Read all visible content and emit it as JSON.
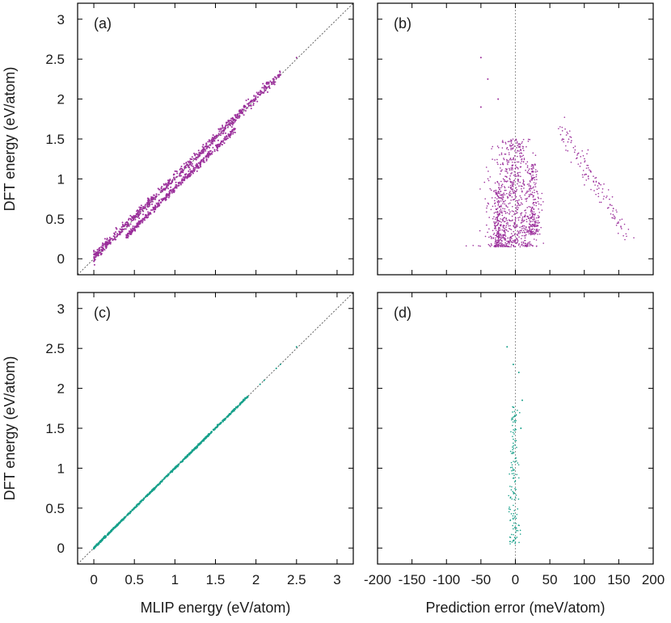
{
  "colors": {
    "magenta": "#9b2f9b",
    "teal": "#16a08a",
    "frame": "#000000",
    "refline": "#555555"
  },
  "ticks": {
    "energy": [
      "0",
      "0.5",
      "1",
      "1.5",
      "2",
      "2.5",
      "3"
    ],
    "error": [
      "-200",
      "-150",
      "-100",
      "-50",
      "0",
      "50",
      "100",
      "150",
      "200"
    ]
  },
  "chart_data": [
    {
      "panel": "(a)",
      "type": "scatter",
      "xlabel": "",
      "ylabel": "DFT energy (eV/atom)",
      "xlim": [
        -0.2,
        3.2
      ],
      "ylim": [
        -0.2,
        3.2
      ],
      "grid": false,
      "color": "magenta",
      "reference_line": "y = x, dotted",
      "bands": [
        {
          "x_start": 0.0,
          "x_end": 2.3,
          "y_offset": 0.02,
          "spread": 0.03
        },
        {
          "x_start": 0.4,
          "x_end": 1.75,
          "y_offset": -0.12,
          "spread": 0.02
        }
      ],
      "extra_points": [
        [
          2.05,
          2.05
        ],
        [
          2.3,
          2.3
        ],
        [
          2.5,
          2.52
        ]
      ]
    },
    {
      "panel": "(b)",
      "type": "scatter",
      "xlabel": "",
      "ylabel": "",
      "xlim": [
        -200,
        200
      ],
      "ylim": [
        -0.2,
        3.2
      ],
      "grid": false,
      "color": "magenta",
      "reference_line": "x = 0, dotted",
      "clusters": [
        {
          "x_center": -5,
          "x_spread": 20,
          "y_min": 0.15,
          "y_max": 1.5
        },
        {
          "x_center": -25,
          "x_spread": 5,
          "y_min": 0.15,
          "y_max": 0.9
        },
        {
          "x_center": 25,
          "x_spread": 6,
          "y_min": 0.3,
          "y_max": 1.2
        }
      ],
      "tail": {
        "x_start": 60,
        "x_end": 165,
        "y_start": 1.7,
        "y_end": 0.27
      },
      "extra_points": [
        [
          -50,
          2.52
        ],
        [
          -40,
          2.25
        ],
        [
          -50,
          1.9
        ],
        [
          -25,
          2.0
        ]
      ]
    },
    {
      "panel": "(c)",
      "type": "scatter",
      "xlabel": "MLIP energy (eV/atom)",
      "ylabel": "DFT energy (eV/atom)",
      "xlim": [
        -0.2,
        3.2
      ],
      "ylim": [
        -0.2,
        3.2
      ],
      "grid": false,
      "color": "teal",
      "reference_line": "y = x, dotted",
      "bands": [
        {
          "x_start": 0.0,
          "x_end": 1.9,
          "y_offset": 0.0,
          "spread": 0.005
        }
      ],
      "extra_points": [
        [
          2.05,
          2.05
        ],
        [
          2.1,
          2.1
        ],
        [
          2.25,
          2.25
        ],
        [
          2.3,
          2.3
        ],
        [
          2.5,
          2.52
        ]
      ]
    },
    {
      "panel": "(d)",
      "type": "scatter",
      "xlabel": "Prediction error (meV/atom)",
      "ylabel": "",
      "xlim": [
        -200,
        200
      ],
      "ylim": [
        -0.2,
        3.2
      ],
      "grid": false,
      "color": "teal",
      "reference_line": "x = 0, dotted",
      "clusters": [
        {
          "x_center": -2,
          "x_spread": 4,
          "y_min": 0.05,
          "y_max": 1.8
        }
      ],
      "extra_points": [
        [
          -12,
          2.52
        ],
        [
          -3,
          2.3
        ],
        [
          5,
          2.2
        ],
        [
          10,
          1.85
        ],
        [
          8,
          1.5
        ]
      ]
    }
  ]
}
